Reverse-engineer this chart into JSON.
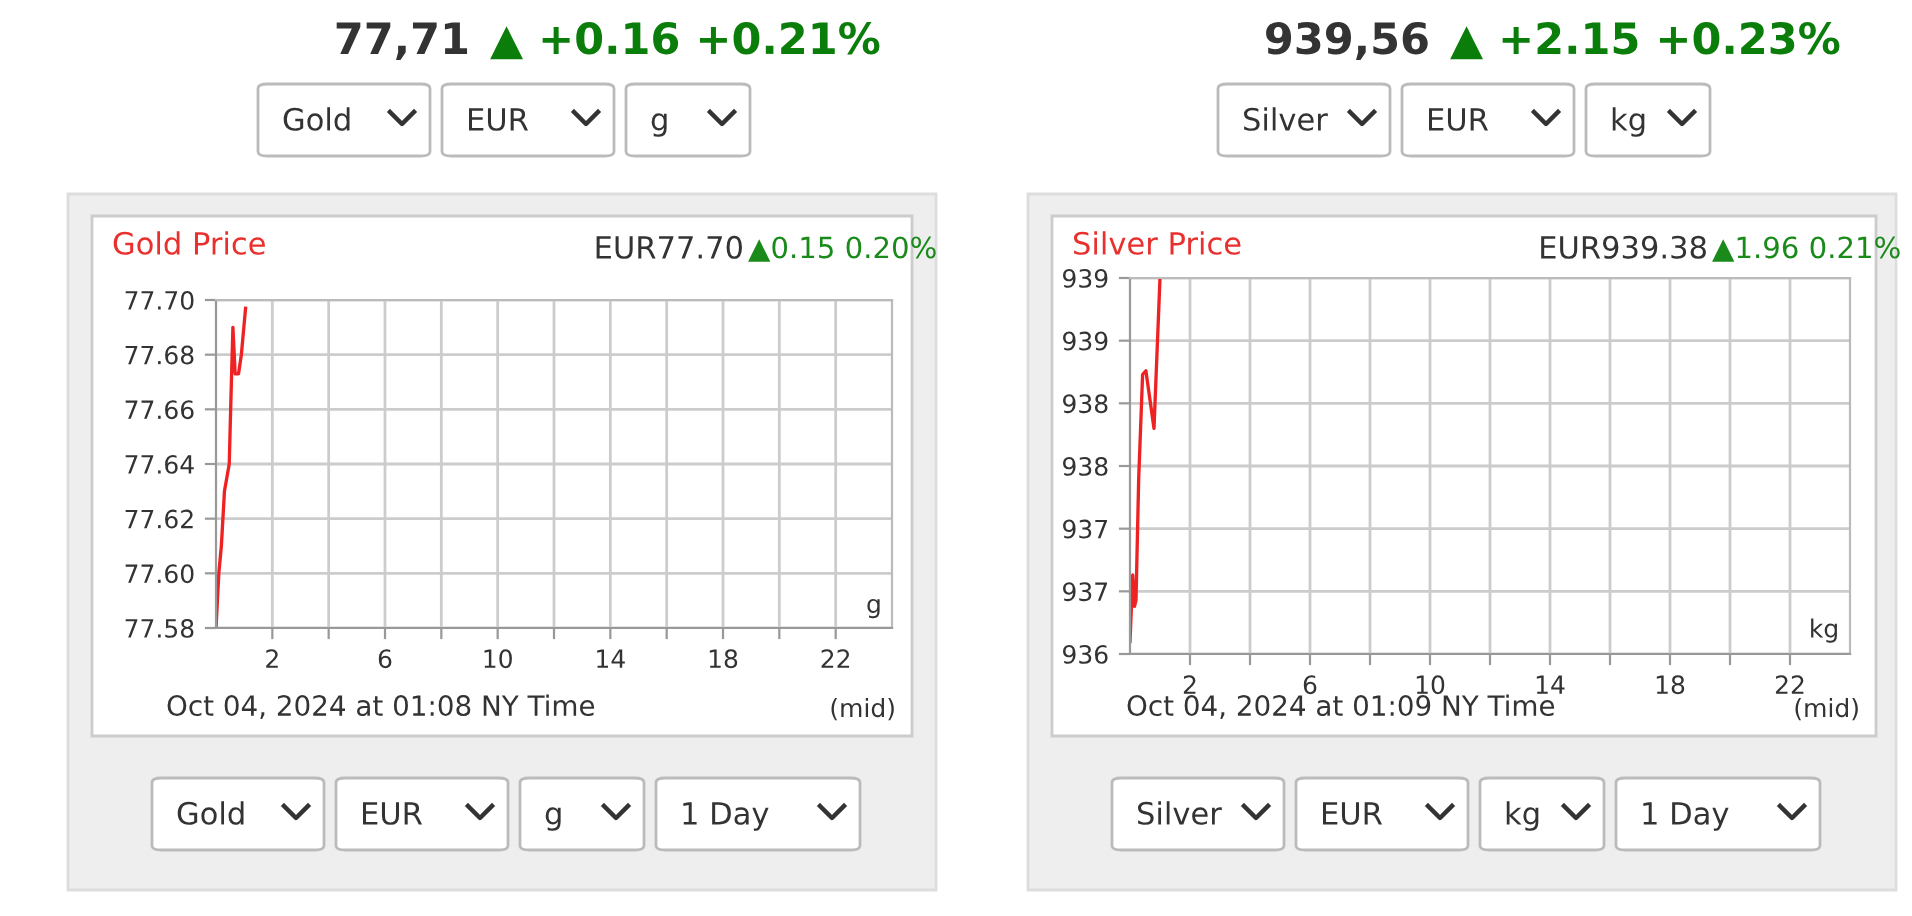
{
  "chart_data": [
    {
      "type": "line",
      "title": "Gold Price",
      "subtitle": "EUR77.70",
      "x": [
        0,
        0.1,
        0.19,
        0.3,
        0.47,
        0.52,
        0.6,
        0.68,
        0.8,
        0.9,
        1.05
      ],
      "series": [
        {
          "color": "#ee2222",
          "values": [
            77.58,
            77.6,
            77.61,
            77.63,
            77.64,
            77.66,
            77.69,
            77.673,
            77.673,
            77.68,
            77.697
          ]
        }
      ],
      "xlim": [
        0,
        24
      ],
      "xticks": [
        2,
        {
          "value": 4,
          "label": null
        },
        6,
        {
          "value": 8,
          "label": null
        },
        10,
        {
          "value": 12,
          "label": null
        },
        14,
        {
          "value": 16,
          "label": null
        },
        18,
        {
          "value": 20,
          "label": null
        },
        22
      ],
      "ylim": [
        77.58,
        77.7
      ],
      "yticks": [
        {
          "value": 77.58,
          "label": "77.58"
        },
        {
          "value": 77.6,
          "label": "77.60"
        },
        {
          "value": 77.62,
          "label": "77.62"
        },
        {
          "value": 77.64,
          "label": "77.64"
        },
        {
          "value": 77.66,
          "label": "77.66"
        },
        {
          "value": 77.68,
          "label": "77.68"
        },
        {
          "value": 77.7,
          "label": "77.70"
        }
      ],
      "grid": true,
      "annotations": [
        "77,71",
        "▲ +0.16 +0.21%",
        "Oct 04, 2024 at 01:08 NY Time",
        "(mid)",
        "g",
        "▲0.15 0.20%",
        "Gold",
        "EUR",
        "g",
        "Gold",
        "EUR",
        "g",
        "1 Day"
      ]
    },
    {
      "type": "line",
      "title": "Silver Price",
      "subtitle": "EUR939.38",
      "x": [
        0,
        0.09,
        0.15,
        0.2,
        0.29,
        0.42,
        0.53,
        0.8,
        1.0
      ],
      "series": [
        {
          "color": "#ee2222",
          "values": [
            936.1,
            936.63,
            936.38,
            936.43,
            937.4,
            938.23,
            938.26,
            937.8,
            939.0
          ]
        }
      ],
      "xlim": [
        0,
        24
      ],
      "xticks": [
        2,
        {
          "value": 4,
          "label": null
        },
        6,
        {
          "value": 8,
          "label": null
        },
        10,
        {
          "value": 12,
          "label": null
        },
        14,
        {
          "value": 16,
          "label": null
        },
        18,
        {
          "value": 20,
          "label": null
        },
        22
      ],
      "ylim": [
        936,
        939
      ],
      "yticks": [
        {
          "value": 936,
          "label": "936"
        },
        {
          "value": 936.5,
          "label": "937"
        },
        {
          "value": 937,
          "label": "937"
        },
        {
          "value": 937.5,
          "label": "938"
        },
        {
          "value": 938,
          "label": "938"
        },
        {
          "value": 938.5,
          "label": "939"
        },
        {
          "value": 939,
          "label": "939"
        }
      ],
      "grid": true,
      "annotations": [
        "939,56",
        "▲ +2.15 +0.23%",
        "Oct 04, 2024 at 01:09 NY Time",
        "(mid)",
        "kg",
        "▲1.96 0.21%",
        "Silver",
        "EUR",
        "kg",
        "Silver",
        "EUR",
        "kg",
        "1 Day"
      ]
    }
  ]
}
